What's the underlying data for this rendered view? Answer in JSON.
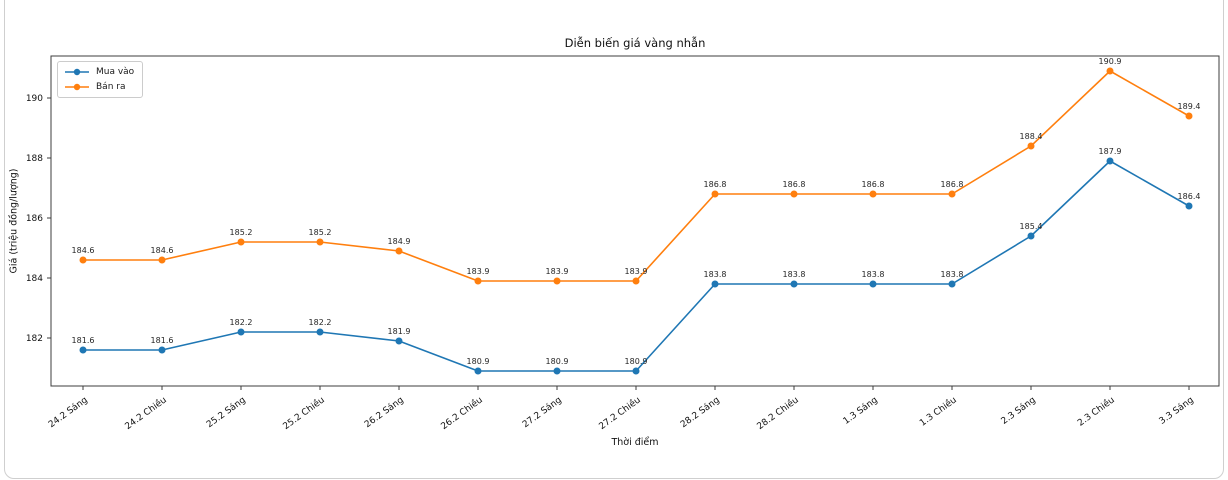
{
  "figure": {
    "background": "#ffffff",
    "border_color": "#cfcfcf",
    "spine_color": "#3c3c3c"
  },
  "chart_data": {
    "type": "line",
    "title": "Diễn biến giá vàng nhẫn",
    "xlabel": "Thời điểm",
    "ylabel": "Giá (triệu đồng/lượng)",
    "categories": [
      "24.2 Sáng",
      "24.2 Chiều",
      "25.2 Sáng",
      "25.2 Chiều",
      "26.2 Sáng",
      "26.2 Chiều",
      "27.2 Sáng",
      "27.2 Chiều",
      "28.2 Sáng",
      "28.2 Chiều",
      "1.3 Sáng",
      "1.3 Chiều",
      "2.3 Sáng",
      "2.3 Chiều",
      "3.3 Sáng"
    ],
    "series": [
      {
        "name": "Mua vào",
        "color": "#1f77b4",
        "values": [
          181.6,
          181.6,
          182.2,
          182.2,
          181.9,
          180.9,
          180.9,
          180.9,
          183.8,
          183.8,
          183.8,
          183.8,
          185.4,
          187.9,
          186.4
        ]
      },
      {
        "name": "Bán ra",
        "color": "#ff7f0e",
        "values": [
          184.6,
          184.6,
          185.2,
          185.2,
          184.9,
          183.9,
          183.9,
          183.9,
          186.8,
          186.8,
          186.8,
          186.8,
          188.4,
          190.9,
          189.4
        ]
      }
    ],
    "yticks": [
      182,
      184,
      186,
      188,
      190
    ],
    "ylim": [
      180.4,
      191.4
    ],
    "grid": false,
    "legend_position": "upper left",
    "data_labels": true
  }
}
